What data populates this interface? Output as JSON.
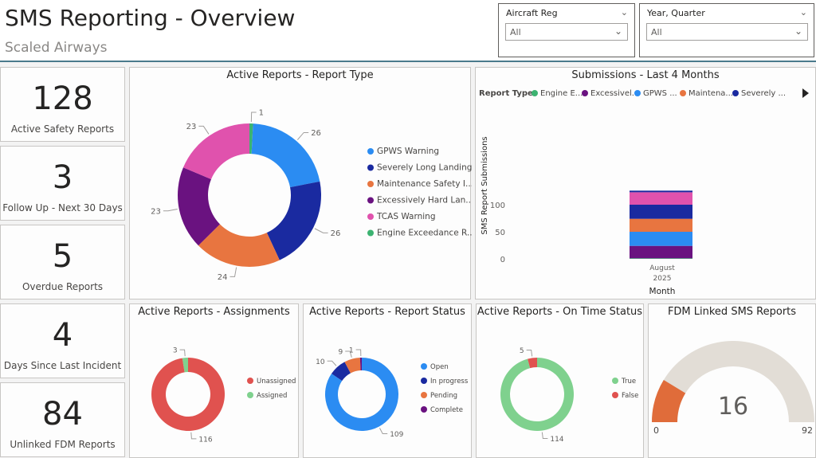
{
  "header": {
    "title": "SMS Reporting - Overview",
    "subtitle": "Scaled Airways"
  },
  "slicers": [
    {
      "label": "Aircraft Reg",
      "value": "All"
    },
    {
      "label": "Year, Quarter",
      "value": "All"
    }
  ],
  "kpis": [
    {
      "value": "128",
      "label": "Active Safety Reports"
    },
    {
      "value": "3",
      "label": "Follow Up - Next 30 Days"
    },
    {
      "value": "5",
      "label": "Overdue Reports"
    },
    {
      "value": "4",
      "label": "Days Since Last Incident"
    },
    {
      "value": "84",
      "label": "Unlinked FDM Reports"
    }
  ],
  "colors": {
    "gpws": "#2b8cf2",
    "severe": "#1a2aa0",
    "maint": "#e87540",
    "hard": "#6a1280",
    "tcas": "#e052ad",
    "engine": "#3cb371",
    "red": "#e0524f",
    "green": "#7fd18e",
    "gauge_track": "#e2ddd6",
    "gauge_fill": "#e06c3a"
  },
  "panels": {
    "report_type_title": "Active Reports - Report Type",
    "submissions_title": "Submissions - Last 4 Months",
    "assignments_title": "Active Reports - Assignments",
    "status_title": "Active Reports - Report Status",
    "ontime_title": "Active Reports - On Time Status",
    "fdm_title": "FDM Linked SMS Reports"
  },
  "chart_data": [
    {
      "type": "pie",
      "title": "Active Reports - Report Type",
      "categories": [
        "GPWS Warning",
        "Severely Long Landing",
        "Maintenance Safety I...",
        "Excessively Hard Lan...",
        "TCAS Warning",
        "Engine Exceedance R..."
      ],
      "values": [
        26,
        26,
        24,
        23,
        23,
        1
      ],
      "legend": "right"
    },
    {
      "type": "bar",
      "title": "Submissions - Last 4 Months",
      "legend_title": "Report Type",
      "legend": [
        "Engine E...",
        "Excessivel...",
        "GPWS ...",
        "Maintena...",
        "Severely ..."
      ],
      "categories": [
        "August 2025"
      ],
      "xlabel": "Month",
      "ylabel": "SMS Report Submissions",
      "yticks": [
        0,
        50,
        100
      ],
      "ylim": [
        0,
        130
      ],
      "series": [
        {
          "name": "Engine E...",
          "values": [
            1
          ]
        },
        {
          "name": "Excessivel...",
          "values": [
            23
          ]
        },
        {
          "name": "GPWS ...",
          "values": [
            26
          ]
        },
        {
          "name": "Maintena...",
          "values": [
            24
          ]
        },
        {
          "name": "Severely ...",
          "values": [
            26
          ]
        },
        {
          "name": "",
          "values": [
            23
          ]
        }
      ]
    },
    {
      "type": "pie",
      "title": "Active Reports - Assignments",
      "categories": [
        "Unassigned",
        "Assigned"
      ],
      "values": [
        116,
        3
      ],
      "legend": "right"
    },
    {
      "type": "pie",
      "title": "Active Reports - Report Status",
      "categories": [
        "Open",
        "In progress",
        "Pending",
        "Complete"
      ],
      "values": [
        109,
        10,
        9,
        1
      ],
      "legend": "right"
    },
    {
      "type": "pie",
      "title": "Active Reports - On Time Status",
      "categories": [
        "True",
        "False"
      ],
      "values": [
        114,
        5
      ],
      "legend": "right"
    },
    {
      "type": "gauge",
      "title": "FDM Linked SMS Reports",
      "value": 16,
      "min": 0,
      "max": 92
    }
  ]
}
